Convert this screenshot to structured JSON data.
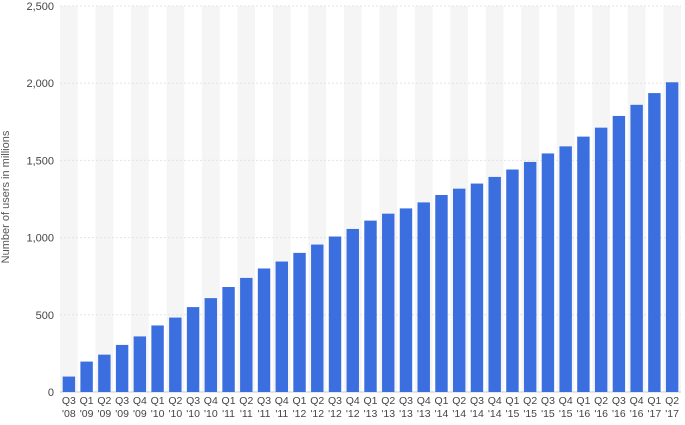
{
  "chart_data": {
    "type": "bar",
    "title": "",
    "xlabel": "",
    "ylabel": "Number of users in millions",
    "ylim": [
      0,
      2500
    ],
    "yticks": [
      "0",
      "500",
      "1,000",
      "1,500",
      "2,000",
      "2,500"
    ],
    "ytick_values": [
      0,
      500,
      1000,
      1500,
      2000,
      2500
    ],
    "grid": true,
    "bar_color": "#3b6fe0",
    "categories": [
      [
        "Q3",
        "'08"
      ],
      [
        "Q1",
        "'09"
      ],
      [
        "Q2",
        "'09"
      ],
      [
        "Q3",
        "'09"
      ],
      [
        "Q4",
        "'09"
      ],
      [
        "Q1",
        "'10"
      ],
      [
        "Q2",
        "'10"
      ],
      [
        "Q3",
        "'10"
      ],
      [
        "Q4",
        "'10"
      ],
      [
        "Q1",
        "'11"
      ],
      [
        "Q2",
        "'11"
      ],
      [
        "Q3",
        "'11"
      ],
      [
        "Q4",
        "'11"
      ],
      [
        "Q1",
        "'12"
      ],
      [
        "Q2",
        "'12"
      ],
      [
        "Q3",
        "'12"
      ],
      [
        "Q4",
        "'12"
      ],
      [
        "Q1",
        "'13"
      ],
      [
        "Q2",
        "'13"
      ],
      [
        "Q3",
        "'13"
      ],
      [
        "Q4",
        "'13"
      ],
      [
        "Q1",
        "'14"
      ],
      [
        "Q2",
        "'14"
      ],
      [
        "Q3",
        "'14"
      ],
      [
        "Q4",
        "'14"
      ],
      [
        "Q1",
        "'15"
      ],
      [
        "Q2",
        "'15"
      ],
      [
        "Q3",
        "'15"
      ],
      [
        "Q4",
        "'15"
      ],
      [
        "Q1",
        "'16"
      ],
      [
        "Q2",
        "'16"
      ],
      [
        "Q3",
        "'16"
      ],
      [
        "Q4",
        "'16"
      ],
      [
        "Q1",
        "'17"
      ],
      [
        "Q2",
        "'17"
      ]
    ],
    "values": [
      100,
      197,
      242,
      305,
      360,
      431,
      482,
      550,
      608,
      680,
      739,
      800,
      845,
      901,
      955,
      1007,
      1056,
      1110,
      1155,
      1189,
      1228,
      1276,
      1317,
      1350,
      1393,
      1441,
      1490,
      1545,
      1591,
      1654,
      1712,
      1788,
      1860,
      1936,
      2006
    ]
  }
}
